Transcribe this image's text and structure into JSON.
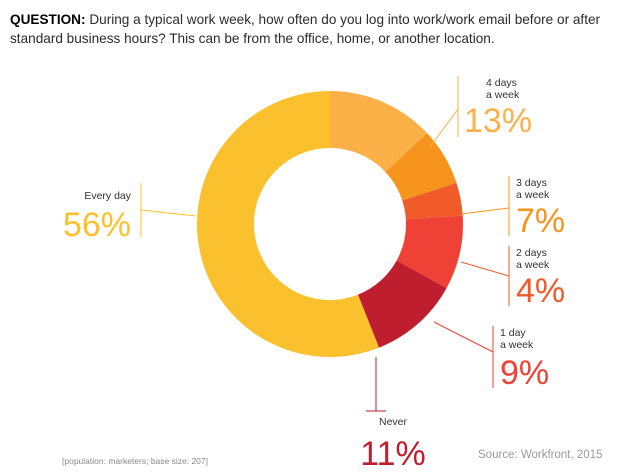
{
  "question": {
    "label": "QUESTION:",
    "text": "During a typical work week, how often do you log into work/work email before or after standard business hours? This can be from the office, home, or another location."
  },
  "chart_data": {
    "type": "pie",
    "title": "",
    "slices": [
      {
        "name_lines": [
          "Every day"
        ],
        "value": 56,
        "label": "56%",
        "color": "#FBC02D"
      },
      {
        "name_lines": [
          "4 days",
          "a week"
        ],
        "value": 13,
        "label": "13%",
        "color": "#FBB148"
      },
      {
        "name_lines": [
          "3 days",
          "a week"
        ],
        "value": 7,
        "label": "7%",
        "color": "#F7941D"
      },
      {
        "name_lines": [
          "2 days",
          "a week"
        ],
        "value": 4,
        "label": "4%",
        "color": "#F15A29"
      },
      {
        "name_lines": [
          "1 day",
          "a week"
        ],
        "value": 9,
        "label": "9%",
        "color": "#EF4136"
      },
      {
        "name_lines": [
          "Never"
        ],
        "value": 11,
        "label": "11%",
        "color": "#BE1E2D"
      }
    ]
  },
  "footnote": "[population: marketers; base size: 207]",
  "source": "Source: Workfront, 2015"
}
